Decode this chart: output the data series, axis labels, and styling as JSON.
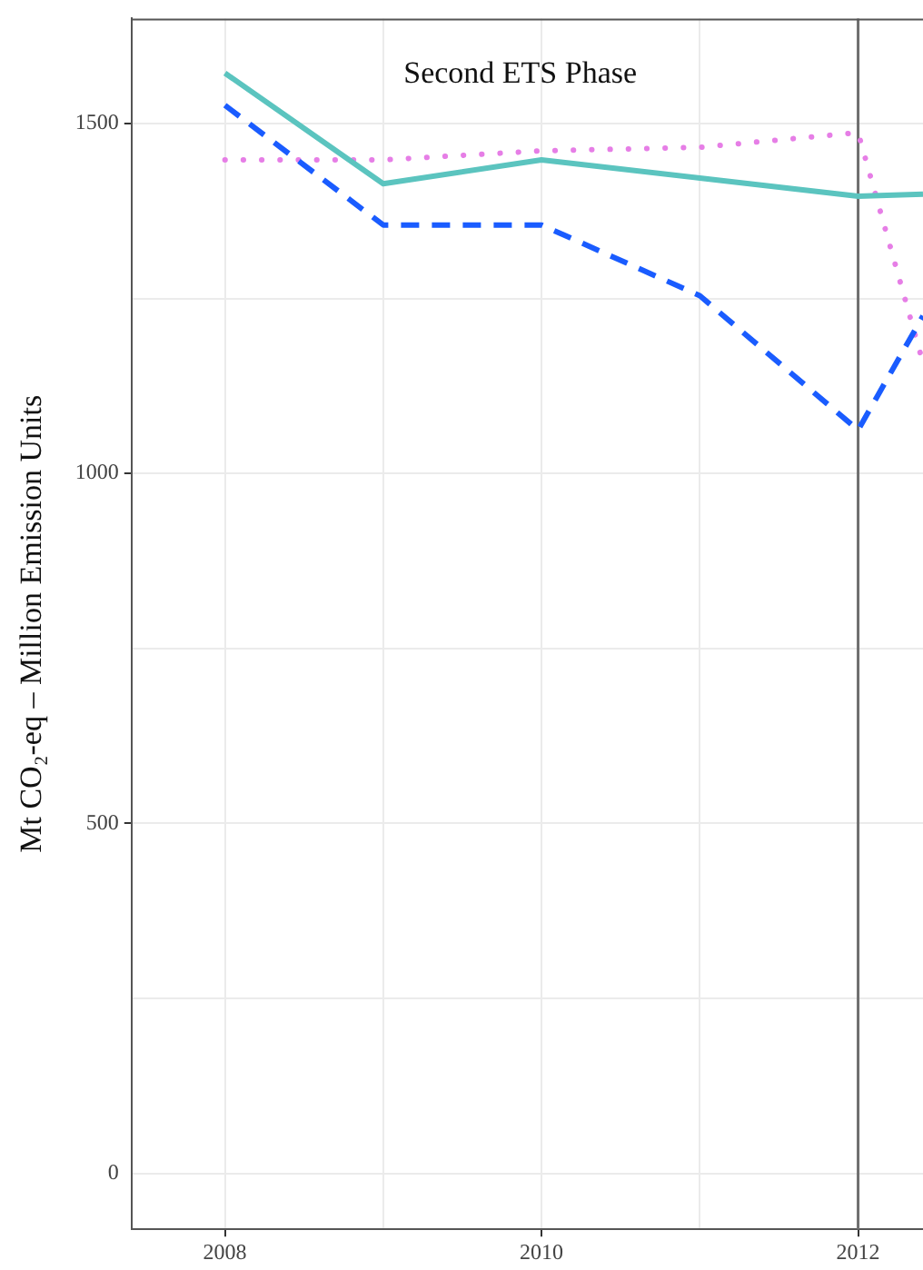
{
  "chart_data": {
    "type": "line",
    "ylabel": "Mt CO₂-eq – Million Emission Units",
    "annotations": [
      "Second ETS Phase"
    ],
    "xlim": [
      2007.41,
      2012.41
    ],
    "xticks": [
      2008,
      {
        "value": 2009,
        "label": null
      },
      2010,
      {
        "value": 2011,
        "label": null
      },
      2012
    ],
    "ylim": [
      -80,
      1650
    ],
    "yticks": [
      0,
      {
        "value": 250,
        "label": null
      },
      500,
      {
        "value": 750,
        "label": null
      },
      1000,
      {
        "value": 1250,
        "label": null
      },
      1500
    ],
    "grid": true,
    "legend": false,
    "marker": "none",
    "ref_lines": [
      {
        "axis": "x",
        "value": 2012,
        "color": "#6e6e6e"
      }
    ],
    "series": [
      {
        "color": "#5bc4bf",
        "line_style": "solid",
        "x": [
          2008,
          2009,
          2010,
          2011,
          2012,
          2012.41
        ],
        "values": [
          1572,
          1414,
          1448,
          1422,
          1396,
          1399
        ]
      },
      {
        "color": "#1a5cff",
        "line_style": "dashed",
        "x": [
          2008,
          2009,
          2010,
          2011,
          2012,
          2012.41
        ],
        "values": [
          1526,
          1355,
          1355,
          1254,
          1062,
          1225
        ]
      },
      {
        "color": "#e67ee6",
        "line_style": "dotted",
        "x": [
          2008,
          2009,
          2010,
          2011,
          2012,
          2012.41
        ],
        "values": [
          1448,
          1448,
          1461,
          1466,
          1487,
          1158
        ]
      }
    ]
  }
}
